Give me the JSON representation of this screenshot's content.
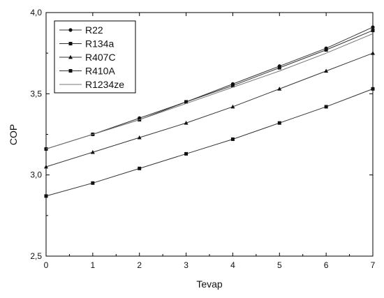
{
  "chart_data": {
    "type": "line",
    "title": "",
    "xlabel": "Tevap",
    "ylabel": "COP",
    "xlim": [
      0,
      7
    ],
    "ylim": [
      2.5,
      4.0
    ],
    "x": [
      0,
      1,
      2,
      3,
      4,
      5,
      6,
      7
    ],
    "x_ticks": [
      "0",
      "1",
      "2",
      "3",
      "4",
      "5",
      "6",
      "7"
    ],
    "y_ticks": [
      "2,5",
      "3,0",
      "3,5",
      "4,0"
    ],
    "y_tick_values": [
      2.5,
      3.0,
      3.5,
      4.0
    ],
    "grid": false,
    "legend_position": "top-left",
    "series": [
      {
        "name": "R22",
        "marker": "circle",
        "values": [
          3.16,
          3.25,
          3.35,
          3.45,
          3.56,
          3.67,
          3.78,
          3.91
        ]
      },
      {
        "name": "R134a",
        "marker": "square",
        "values": [
          3.16,
          3.25,
          3.34,
          3.45,
          3.55,
          3.66,
          3.77,
          3.89
        ]
      },
      {
        "name": "R407C",
        "marker": "triangle",
        "values": [
          3.05,
          3.14,
          3.23,
          3.32,
          3.42,
          3.53,
          3.64,
          3.75
        ]
      },
      {
        "name": "R410A",
        "marker": "square",
        "values": [
          2.87,
          2.95,
          3.04,
          3.13,
          3.22,
          3.32,
          3.42,
          3.53
        ]
      },
      {
        "name": "R1234ze",
        "marker": "none",
        "values": [
          3.16,
          3.25,
          3.34,
          3.44,
          3.54,
          3.64,
          3.75,
          3.87
        ]
      }
    ]
  }
}
